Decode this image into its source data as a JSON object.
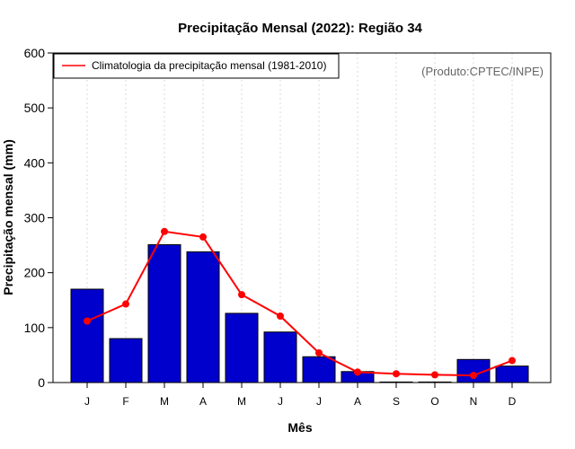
{
  "chart_data": {
    "type": "bar",
    "title": "Precipitação Mensal (2022): Região 34",
    "xlabel": "Mês",
    "ylabel": "Precipitação mensal (mm)",
    "ylim": [
      0,
      600
    ],
    "yticks": [
      "0",
      "100",
      "200",
      "300",
      "400",
      "500",
      "600"
    ],
    "grid": "vertical dotted",
    "categories": [
      "J",
      "F",
      "M",
      "A",
      "M",
      "J",
      "J",
      "A",
      "S",
      "O",
      "N",
      "D"
    ],
    "series": [
      {
        "name": "Precipitação mensal (2022)",
        "kind": "bar",
        "color": "#0000CC",
        "values": [
          170,
          80,
          251,
          238,
          126,
          92,
          47,
          20,
          1,
          1,
          42,
          30
        ]
      },
      {
        "name": "Climatologia da precipitação mensal (1981-2010)",
        "kind": "line",
        "color": "#FF0000",
        "values": [
          112,
          143,
          275,
          265,
          160,
          121,
          54,
          19,
          16,
          14,
          13,
          40
        ]
      }
    ],
    "legend": {
      "position": "top-left",
      "entries": [
        "Climatologia da precipitação mensal (1981-2010)"
      ]
    },
    "credit": "(Produto:CPTEC/INPE)"
  }
}
